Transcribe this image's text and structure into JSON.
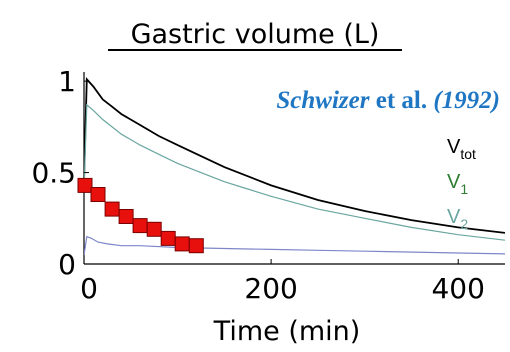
{
  "chart_data": {
    "type": "line",
    "title": "Gastric volume (L)",
    "xlabel": "Time (min)",
    "ylabel": "",
    "xlim": [
      0,
      450
    ],
    "ylim": [
      0,
      1.05
    ],
    "x_ticks": [
      {
        "value": 0,
        "label": "0"
      },
      {
        "value": 200,
        "label": "200"
      },
      {
        "value": 400,
        "label": "400"
      }
    ],
    "y_ticks": [
      {
        "value": 0,
        "label": "0"
      },
      {
        "value": 0.5,
        "label": "0.5"
      },
      {
        "value": 1,
        "label": "1"
      }
    ],
    "grid": false,
    "annotation": {
      "parts": [
        {
          "text": "Schwizer",
          "style": "italic"
        },
        {
          "text": " et al. ",
          "style": "normal"
        },
        {
          "text": "(1992)",
          "style": "italic"
        }
      ],
      "color": "#1f77c4"
    },
    "legend": {
      "placement": "right",
      "entries": [
        {
          "base": "V",
          "sub": "tot",
          "color": "#000000"
        },
        {
          "base": "V",
          "sub": "1",
          "color": "#2e7d32"
        },
        {
          "base": "V",
          "sub": "2",
          "color": "#6aa6a0"
        }
      ]
    },
    "series": [
      {
        "key": "tot",
        "color": "#000000",
        "x": [
          0,
          3,
          10,
          20,
          30,
          40,
          60,
          80,
          100,
          125,
          150,
          175,
          200,
          250,
          300,
          350,
          400,
          450
        ],
        "y": [
          0.45,
          1.01,
          0.97,
          0.9,
          0.86,
          0.82,
          0.76,
          0.7,
          0.65,
          0.59,
          0.53,
          0.48,
          0.43,
          0.35,
          0.29,
          0.24,
          0.2,
          0.17
        ]
      },
      {
        "key": "1",
        "color": "#6aa6a0",
        "x": [
          0,
          3,
          10,
          20,
          30,
          40,
          60,
          80,
          100,
          125,
          150,
          175,
          200,
          250,
          300,
          350,
          400,
          450
        ],
        "y": [
          0.4,
          0.87,
          0.84,
          0.79,
          0.75,
          0.71,
          0.65,
          0.6,
          0.55,
          0.5,
          0.45,
          0.41,
          0.37,
          0.3,
          0.25,
          0.2,
          0.16,
          0.13
        ]
      },
      {
        "key": "2",
        "color": "#7f86c9",
        "x": [
          0,
          3,
          8,
          15,
          25,
          40,
          60,
          100,
          150,
          200,
          250,
          300,
          400,
          450
        ],
        "y": [
          0.05,
          0.15,
          0.14,
          0.12,
          0.11,
          0.1,
          0.1,
          0.09,
          0.085,
          0.08,
          0.075,
          0.07,
          0.06,
          0.055
        ]
      }
    ],
    "markers": {
      "type": "scatter",
      "color": "#e8100c",
      "x": [
        0,
        15,
        30,
        45,
        60,
        75,
        90,
        105,
        120
      ],
      "y": [
        0.43,
        0.38,
        0.3,
        0.26,
        0.21,
        0.19,
        0.14,
        0.11,
        0.1
      ]
    }
  }
}
